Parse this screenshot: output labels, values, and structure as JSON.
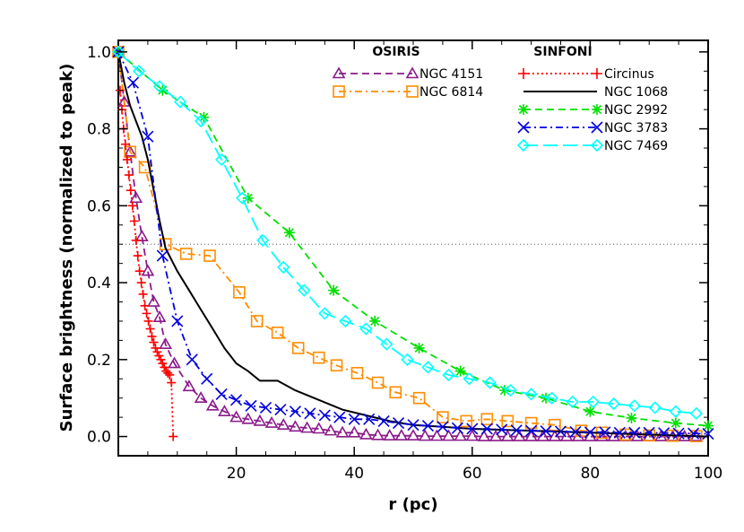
{
  "chart_data": {
    "type": "line",
    "title": "",
    "xlabel": "r (pc)",
    "ylabel": "Surface brightness (normalized to peak)",
    "xlim": [
      0,
      100
    ],
    "ylim": [
      -0.05,
      1.03
    ],
    "xticks": [
      20,
      40,
      60,
      80,
      100
    ],
    "yticks": [
      0.0,
      0.2,
      0.4,
      0.6,
      0.8,
      1.0
    ],
    "xtick_labels": [
      "20",
      "40",
      "60",
      "80",
      "100"
    ],
    "ytick_labels": [
      "0.0",
      "0.2",
      "0.4",
      "0.6",
      "0.8",
      "1.0"
    ],
    "reference_line": {
      "y": 0.5,
      "style": "dotted",
      "color": "#555555"
    },
    "legend_headers": {
      "left": "OSIRIS",
      "right": "SINFONI"
    },
    "series": [
      {
        "name": "NGC 4151",
        "group": "OSIRIS",
        "color": "#8B1A8B",
        "dash": "dash",
        "marker": "triangle",
        "x": [
          0,
          1,
          2,
          3,
          4,
          5,
          6,
          7,
          8,
          9.5,
          12,
          14,
          16,
          18,
          20,
          22,
          24,
          26,
          28,
          30,
          32,
          34,
          36,
          38,
          40,
          42,
          44,
          46,
          48,
          50,
          52,
          54,
          56,
          58,
          60,
          62,
          64,
          66,
          68,
          70,
          72,
          74,
          76,
          78,
          80,
          82,
          84,
          86,
          88,
          90,
          92,
          94,
          96,
          98
        ],
        "y": [
          1.0,
          0.87,
          0.74,
          0.62,
          0.52,
          0.43,
          0.35,
          0.31,
          0.24,
          0.19,
          0.13,
          0.1,
          0.08,
          0.065,
          0.05,
          0.045,
          0.04,
          0.035,
          0.03,
          0.025,
          0.022,
          0.02,
          0.015,
          0.01,
          0.01,
          0.005,
          0.003,
          0.002,
          0.002,
          0.002,
          0.001,
          0.001,
          0.001,
          0.001,
          0.001,
          0.0,
          0.0,
          0.0,
          0.0,
          0.0,
          0.0,
          0.0,
          0.0,
          0.0,
          0.0,
          0.0,
          0.0,
          0.0,
          0.0,
          0.0,
          0.0,
          0.0,
          0.0,
          0.0
        ]
      },
      {
        "name": "NGC 6814",
        "group": "OSIRIS",
        "color": "#FF8C00",
        "dash": "dashdot",
        "marker": "square",
        "x": [
          0,
          2,
          4.5,
          8,
          11.5,
          15.5,
          20.5,
          23.5,
          27,
          30.5,
          34,
          37,
          40.5,
          44,
          47,
          51,
          55,
          59,
          62.5,
          66,
          70,
          74,
          78.5,
          82,
          86,
          90,
          94,
          98
        ],
        "y": [
          1.0,
          0.74,
          0.7,
          0.5,
          0.475,
          0.47,
          0.375,
          0.3,
          0.27,
          0.23,
          0.205,
          0.185,
          0.165,
          0.14,
          0.115,
          0.1,
          0.05,
          0.04,
          0.045,
          0.04,
          0.035,
          0.03,
          0.015,
          0.01,
          0.005,
          0.003,
          0.002,
          0.001
        ]
      },
      {
        "name": "Circinus",
        "group": "SINFONI",
        "color": "#FF0000",
        "dash": "dot",
        "marker": "plus",
        "x": [
          0.3,
          0.6,
          0.9,
          1.2,
          1.5,
          1.8,
          2.1,
          2.4,
          2.7,
          3.0,
          3.3,
          3.6,
          3.9,
          4.2,
          4.5,
          4.8,
          5.1,
          5.4,
          5.7,
          6.0,
          6.3,
          6.6,
          6.9,
          7.2,
          7.5,
          7.8,
          8.1,
          8.4,
          8.7,
          9.0,
          9.3
        ],
        "y": [
          0.9,
          0.85,
          0.8,
          0.76,
          0.72,
          0.68,
          0.64,
          0.6,
          0.56,
          0.51,
          0.47,
          0.43,
          0.4,
          0.37,
          0.34,
          0.32,
          0.3,
          0.28,
          0.26,
          0.245,
          0.23,
          0.22,
          0.21,
          0.2,
          0.19,
          0.18,
          0.17,
          0.165,
          0.16,
          0.14,
          0.0
        ]
      },
      {
        "name": "NGC 1068",
        "group": "SINFONI",
        "color": "#000000",
        "dash": "solid",
        "marker": "none",
        "x": [
          0,
          1,
          2,
          3,
          4,
          5,
          6,
          7,
          8,
          10,
          12,
          14,
          16,
          18,
          20,
          22,
          24,
          26,
          27,
          30,
          34,
          38,
          42,
          46,
          50,
          55,
          60,
          70,
          80,
          90,
          100
        ],
        "y": [
          1.0,
          0.92,
          0.86,
          0.82,
          0.78,
          0.72,
          0.64,
          0.56,
          0.49,
          0.43,
          0.38,
          0.33,
          0.28,
          0.23,
          0.19,
          0.17,
          0.145,
          0.145,
          0.145,
          0.12,
          0.095,
          0.07,
          0.055,
          0.04,
          0.03,
          0.025,
          0.02,
          0.015,
          0.01,
          0.005,
          0.0
        ]
      },
      {
        "name": "NGC 2992",
        "group": "SINFONI",
        "color": "#00E000",
        "dash": "dash",
        "marker": "asterisk",
        "x": [
          0,
          7.5,
          14.5,
          22,
          29,
          36.5,
          43.5,
          51,
          58,
          65.5,
          72.5,
          80,
          87,
          94.5,
          100
        ],
        "y": [
          1.0,
          0.9,
          0.83,
          0.62,
          0.53,
          0.38,
          0.3,
          0.23,
          0.17,
          0.12,
          0.1,
          0.065,
          0.048,
          0.035,
          0.028
        ]
      },
      {
        "name": "NGC 3783",
        "group": "SINFONI",
        "color": "#0000E0",
        "dash": "dashdot",
        "marker": "x",
        "x": [
          0,
          2.5,
          5,
          7.5,
          10,
          12.5,
          15,
          17.5,
          20,
          22.5,
          25,
          27.5,
          30,
          32.5,
          35,
          37.5,
          40,
          42.5,
          45,
          47.5,
          50,
          52.5,
          55,
          57.5,
          60,
          62.5,
          65,
          67.5,
          70,
          72.5,
          75,
          77.5,
          80,
          82.5,
          85,
          87.5,
          90,
          92.5,
          95,
          97.5,
          100
        ],
        "y": [
          1.0,
          0.92,
          0.78,
          0.47,
          0.3,
          0.2,
          0.15,
          0.11,
          0.095,
          0.08,
          0.075,
          0.07,
          0.065,
          0.06,
          0.055,
          0.05,
          0.045,
          0.045,
          0.04,
          0.035,
          0.03,
          0.028,
          0.025,
          0.022,
          0.02,
          0.02,
          0.018,
          0.016,
          0.015,
          0.014,
          0.013,
          0.012,
          0.011,
          0.011,
          0.01,
          0.01,
          0.01,
          0.009,
          0.008,
          0.008,
          0.007
        ]
      },
      {
        "name": "NGC 7469",
        "group": "SINFONI",
        "color": "#00FFFF",
        "dash": "longdash",
        "marker": "diamond",
        "x": [
          0,
          3.5,
          7,
          10.5,
          14,
          17.5,
          21,
          24.5,
          28,
          31.5,
          35,
          38.5,
          42,
          45.5,
          49,
          52.5,
          56,
          59.5,
          63,
          66.5,
          70,
          73.5,
          77,
          80.5,
          84,
          87.5,
          91,
          94.5,
          98
        ],
        "y": [
          1.0,
          0.95,
          0.91,
          0.87,
          0.82,
          0.72,
          0.62,
          0.51,
          0.44,
          0.38,
          0.32,
          0.3,
          0.28,
          0.24,
          0.2,
          0.18,
          0.16,
          0.15,
          0.14,
          0.12,
          0.11,
          0.1,
          0.09,
          0.09,
          0.085,
          0.08,
          0.075,
          0.065,
          0.06
        ]
      }
    ]
  }
}
